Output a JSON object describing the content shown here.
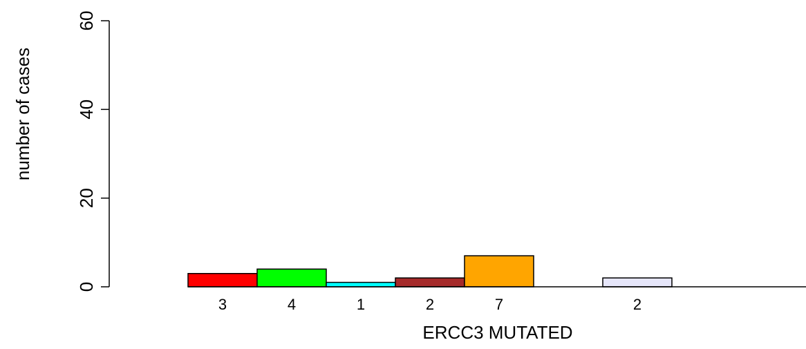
{
  "chart_data": {
    "type": "bar",
    "title": "",
    "xlabel": "ERCC3 MUTATED",
    "ylabel": "number of cases",
    "ylim": [
      0,
      60
    ],
    "yticks": [
      0,
      20,
      40,
      60
    ],
    "grid": false,
    "legend": "none",
    "bars": [
      {
        "value": 3,
        "label": "3",
        "color": "#ff0000"
      },
      {
        "value": 4,
        "label": "4",
        "color": "#00ff00"
      },
      {
        "value": 1,
        "label": "1",
        "color": "#00ffff"
      },
      {
        "value": 2,
        "label": "2",
        "color": "#a52a2a"
      },
      {
        "value": 7,
        "label": "7",
        "color": "#ffa500"
      },
      {
        "value": 0,
        "label": "",
        "color": "#ffffff"
      },
      {
        "value": 2,
        "label": "2",
        "color": "#e6e6fa"
      },
      {
        "value": 0,
        "label": "",
        "color": "#ffffff"
      },
      {
        "value": 0,
        "label": "",
        "color": "#ffffff"
      }
    ]
  }
}
